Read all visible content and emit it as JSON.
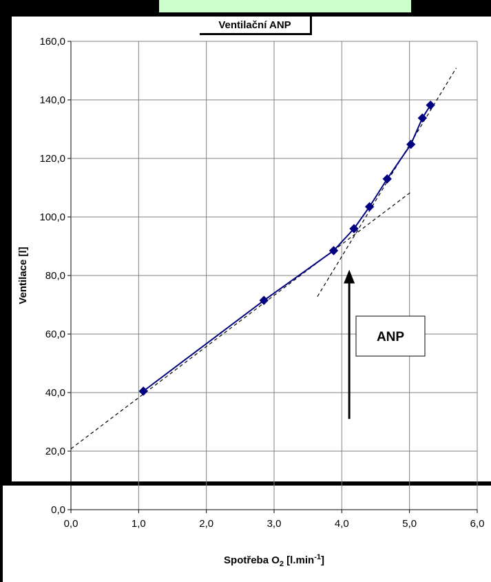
{
  "chart_data": {
    "type": "scatter",
    "title": "Ventilační ANP",
    "xlabel": {
      "base": "Spotřeba O",
      "sub": "2",
      "mid": " [l.min",
      "sup": "-1",
      "end": "]"
    },
    "ylabel": "Ventilace [l]",
    "xlim": [
      0,
      6
    ],
    "ylim": [
      0,
      160
    ],
    "x_ticks": [
      "0,0",
      "1,0",
      "2,0",
      "3,0",
      "4,0",
      "5,0",
      "6,0"
    ],
    "y_ticks": [
      "0,0",
      "20,0",
      "40,0",
      "60,0",
      "80,0",
      "100,0",
      "120,0",
      "140,0",
      "160,0"
    ],
    "grid": true,
    "series": [
      {
        "x": [
          1.07,
          2.85,
          3.88,
          4.18,
          4.41,
          4.67,
          5.02,
          5.19,
          5.31
        ],
        "y": [
          40.5,
          71.5,
          88.5,
          96.0,
          103.5,
          113.0,
          124.8,
          133.8,
          138.2
        ],
        "color": "#000080"
      }
    ],
    "trend_lines": [
      {
        "x": [
          0.0,
          5.02
        ],
        "y": [
          20.8,
          108.5
        ]
      },
      {
        "x": [
          3.64,
          5.69
        ],
        "y": [
          72.8,
          150.9
        ]
      }
    ],
    "annotation": {
      "text": "ANP",
      "arrow_x": 4.11,
      "arrow_from_y": 31.0,
      "arrow_to_y": 82.0
    }
  }
}
